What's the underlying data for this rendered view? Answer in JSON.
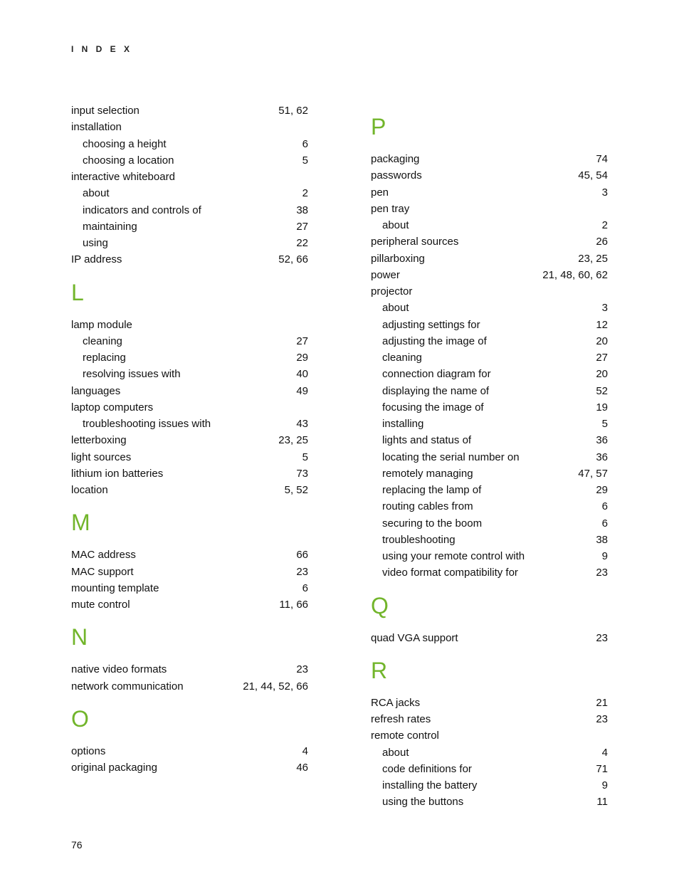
{
  "header": "I N D E X",
  "pageNumber": "76",
  "accentColor": "#72b52b",
  "columns": {
    "left": [
      {
        "type": "entry",
        "label": "input selection",
        "pages": "51, 62",
        "indent": 0
      },
      {
        "type": "entry",
        "label": "installation",
        "pages": "",
        "indent": 0
      },
      {
        "type": "entry",
        "label": "choosing a height",
        "pages": "6",
        "indent": 1
      },
      {
        "type": "entry",
        "label": "choosing a location",
        "pages": "5",
        "indent": 1
      },
      {
        "type": "entry",
        "label": "interactive whiteboard",
        "pages": "",
        "indent": 0
      },
      {
        "type": "entry",
        "label": "about",
        "pages": "2",
        "indent": 1
      },
      {
        "type": "entry",
        "label": "indicators and controls of",
        "pages": "38",
        "indent": 1
      },
      {
        "type": "entry",
        "label": "maintaining",
        "pages": "27",
        "indent": 1
      },
      {
        "type": "entry",
        "label": "using",
        "pages": "22",
        "indent": 1
      },
      {
        "type": "entry",
        "label": "IP address",
        "pages": "52, 66",
        "indent": 0
      },
      {
        "type": "letter",
        "letter": "L"
      },
      {
        "type": "entry",
        "label": "lamp module",
        "pages": "",
        "indent": 0
      },
      {
        "type": "entry",
        "label": "cleaning",
        "pages": "27",
        "indent": 1
      },
      {
        "type": "entry",
        "label": "replacing",
        "pages": "29",
        "indent": 1
      },
      {
        "type": "entry",
        "label": "resolving issues with",
        "pages": "40",
        "indent": 1
      },
      {
        "type": "entry",
        "label": "languages",
        "pages": "49",
        "indent": 0
      },
      {
        "type": "entry",
        "label": "laptop computers",
        "pages": "",
        "indent": 0
      },
      {
        "type": "entry",
        "label": "troubleshooting issues with",
        "pages": "43",
        "indent": 1
      },
      {
        "type": "entry",
        "label": "letterboxing",
        "pages": "23, 25",
        "indent": 0
      },
      {
        "type": "entry",
        "label": "light sources",
        "pages": "5",
        "indent": 0
      },
      {
        "type": "entry",
        "label": "lithium ion batteries",
        "pages": "73",
        "indent": 0
      },
      {
        "type": "entry",
        "label": "location",
        "pages": "5, 52",
        "indent": 0
      },
      {
        "type": "letter",
        "letter": "M"
      },
      {
        "type": "entry",
        "label": "MAC address",
        "pages": "66",
        "indent": 0
      },
      {
        "type": "entry",
        "label": "MAC support",
        "pages": "23",
        "indent": 0
      },
      {
        "type": "entry",
        "label": "mounting template",
        "pages": "6",
        "indent": 0
      },
      {
        "type": "entry",
        "label": "mute control",
        "pages": "11, 66",
        "indent": 0
      },
      {
        "type": "letter",
        "letter": "N"
      },
      {
        "type": "entry",
        "label": "native video formats",
        "pages": "23",
        "indent": 0
      },
      {
        "type": "entry",
        "label": "network communication",
        "pages": "21, 44, 52, 66",
        "indent": 0
      },
      {
        "type": "letter",
        "letter": "O"
      },
      {
        "type": "entry",
        "label": "options",
        "pages": "4",
        "indent": 0
      },
      {
        "type": "entry",
        "label": "original packaging",
        "pages": "46",
        "indent": 0
      }
    ],
    "right": [
      {
        "type": "letter",
        "letter": "P"
      },
      {
        "type": "entry",
        "label": "packaging",
        "pages": "74",
        "indent": 0
      },
      {
        "type": "entry",
        "label": "passwords",
        "pages": "45, 54",
        "indent": 0
      },
      {
        "type": "entry",
        "label": "pen",
        "pages": "3",
        "indent": 0
      },
      {
        "type": "entry",
        "label": "pen tray",
        "pages": "",
        "indent": 0
      },
      {
        "type": "entry",
        "label": "about",
        "pages": "2",
        "indent": 1
      },
      {
        "type": "entry",
        "label": "peripheral sources",
        "pages": "26",
        "indent": 0
      },
      {
        "type": "entry",
        "label": "pillarboxing",
        "pages": "23, 25",
        "indent": 0
      },
      {
        "type": "entry",
        "label": "power",
        "pages": "21, 48, 60, 62",
        "indent": 0
      },
      {
        "type": "entry",
        "label": "projector",
        "pages": "",
        "indent": 0
      },
      {
        "type": "entry",
        "label": "about",
        "pages": "3",
        "indent": 1
      },
      {
        "type": "entry",
        "label": "adjusting settings for",
        "pages": "12",
        "indent": 1
      },
      {
        "type": "entry",
        "label": "adjusting the image of",
        "pages": "20",
        "indent": 1
      },
      {
        "type": "entry",
        "label": "cleaning",
        "pages": "27",
        "indent": 1
      },
      {
        "type": "entry",
        "label": "connection diagram for",
        "pages": "20",
        "indent": 1
      },
      {
        "type": "entry",
        "label": "displaying the name of",
        "pages": "52",
        "indent": 1
      },
      {
        "type": "entry",
        "label": "focusing the image of",
        "pages": "19",
        "indent": 1
      },
      {
        "type": "entry",
        "label": "installing",
        "pages": "5",
        "indent": 1
      },
      {
        "type": "entry",
        "label": "lights and status of",
        "pages": "36",
        "indent": 1
      },
      {
        "type": "entry",
        "label": "locating the serial number on",
        "pages": "36",
        "indent": 1
      },
      {
        "type": "entry",
        "label": "remotely managing",
        "pages": "47, 57",
        "indent": 1
      },
      {
        "type": "entry",
        "label": "replacing the lamp of",
        "pages": "29",
        "indent": 1
      },
      {
        "type": "entry",
        "label": "routing cables from",
        "pages": "6",
        "indent": 1
      },
      {
        "type": "entry",
        "label": "securing to the boom",
        "pages": "6",
        "indent": 1
      },
      {
        "type": "entry",
        "label": "troubleshooting",
        "pages": "38",
        "indent": 1
      },
      {
        "type": "entry",
        "label": "using your remote control with",
        "pages": "9",
        "indent": 1
      },
      {
        "type": "entry",
        "label": "video format compatibility for",
        "pages": "23",
        "indent": 1
      },
      {
        "type": "letter",
        "letter": "Q"
      },
      {
        "type": "entry",
        "label": "quad VGA support",
        "pages": "23",
        "indent": 0
      },
      {
        "type": "letter",
        "letter": "R"
      },
      {
        "type": "entry",
        "label": "RCA jacks",
        "pages": "21",
        "indent": 0
      },
      {
        "type": "entry",
        "label": "refresh rates",
        "pages": "23",
        "indent": 0
      },
      {
        "type": "entry",
        "label": "remote control",
        "pages": "",
        "indent": 0
      },
      {
        "type": "entry",
        "label": "about",
        "pages": "4",
        "indent": 1
      },
      {
        "type": "entry",
        "label": "code definitions for",
        "pages": "71",
        "indent": 1
      },
      {
        "type": "entry",
        "label": "installing the battery",
        "pages": "9",
        "indent": 1
      },
      {
        "type": "entry",
        "label": "using the buttons",
        "pages": "11",
        "indent": 1
      }
    ]
  }
}
